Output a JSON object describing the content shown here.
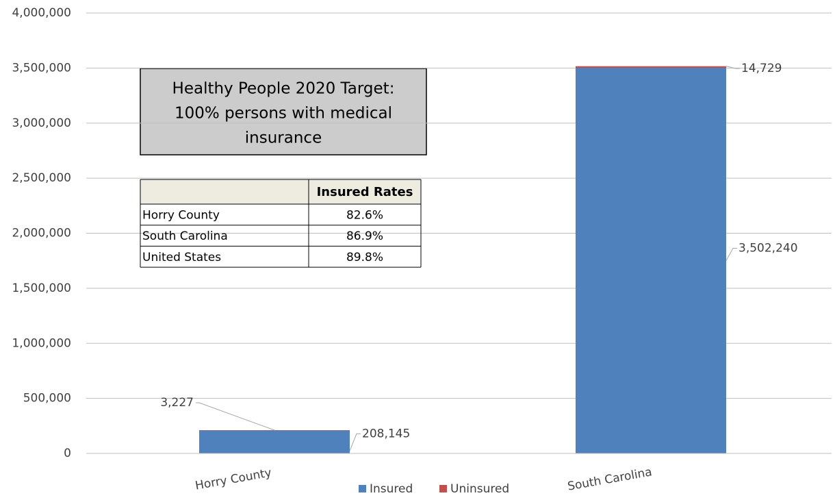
{
  "chart_data": {
    "type": "stacked_bar",
    "categories": [
      "Horry County",
      "South Carolina"
    ],
    "series": [
      {
        "name": "Insured",
        "color": "#4f81bd",
        "values": [
          208145,
          3502240
        ],
        "value_labels": [
          "208,145",
          "3,502,240"
        ]
      },
      {
        "name": "Uninsured",
        "color": "#c0504d",
        "values": [
          3227,
          14729
        ],
        "value_labels": [
          "3,227",
          "14,729"
        ]
      }
    ],
    "ylim": [
      0,
      4000000
    ],
    "yticks": [
      0,
      {
        "value": 500000,
        "label": "500,000"
      },
      {
        "value": 1000000,
        "label": "1,000,000"
      },
      {
        "value": 1500000,
        "label": "1,500,000"
      },
      {
        "value": 2000000,
        "label": "2,000,000"
      },
      {
        "value": 2500000,
        "label": "2,500,000"
      },
      {
        "value": 3000000,
        "label": "3,000,000"
      },
      {
        "value": 3500000,
        "label": "3,500,000"
      },
      {
        "value": 4000000,
        "label": "4,000,000"
      }
    ],
    "grid": true,
    "legend": "bottom",
    "annotation": [
      "Healthy People 2020 Target:",
      "100% persons with medical",
      "insurance"
    ],
    "table": {
      "header": "Insured Rates",
      "rows": [
        [
          "Horry County",
          "82.6%"
        ],
        [
          "South Carolina",
          "86.9%"
        ],
        [
          "United States",
          "89.8%"
        ]
      ]
    }
  }
}
